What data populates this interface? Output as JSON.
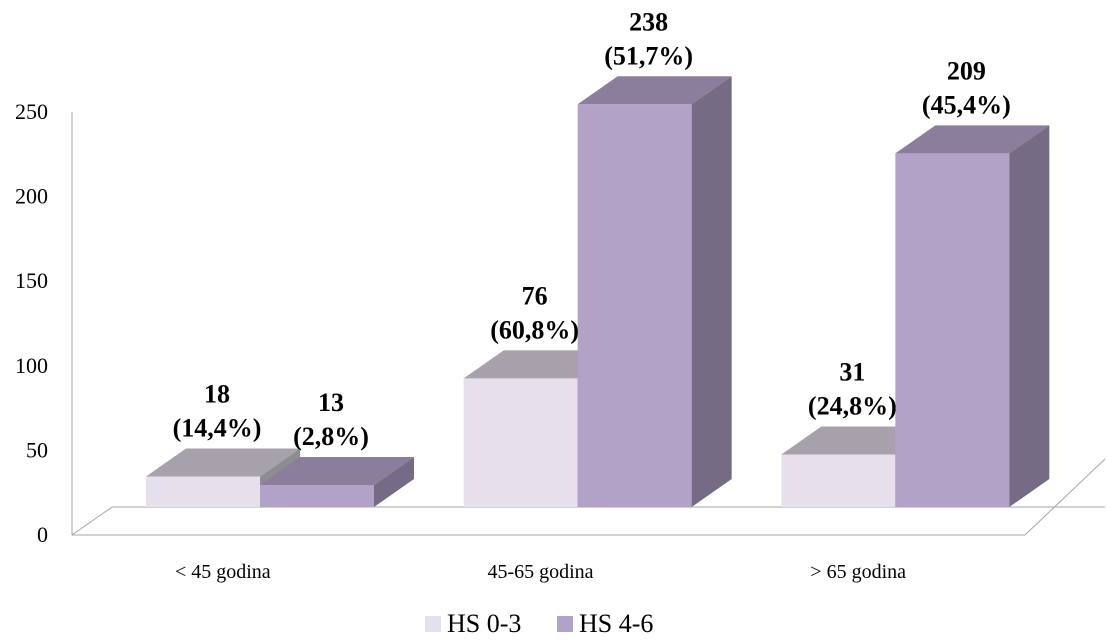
{
  "chart_data": {
    "type": "bar",
    "style": "3d-clustered-column",
    "categories": [
      "< 45 godina",
      "45-65 godina",
      "> 65 godina"
    ],
    "series": [
      {
        "name": "HS 0-3",
        "values": [
          18,
          76,
          31
        ],
        "labels": [
          [
            "18",
            "(14,4%)"
          ],
          [
            "76",
            "(60,8%)"
          ],
          [
            "31",
            "(24,8%)"
          ]
        ],
        "color": "#e6e0ed"
      },
      {
        "name": "HS 4-6",
        "values": [
          13,
          238,
          209
        ],
        "labels": [
          [
            "13",
            "(2,8%)"
          ],
          [
            "238",
            "(51,7%)"
          ],
          [
            "209",
            "(45,4%)"
          ]
        ],
        "color": "#b2a2c8"
      }
    ],
    "ylim": [
      0,
      250
    ],
    "yticks": [
      "0",
      "50",
      "100",
      "150",
      "200",
      "250"
    ],
    "grid": false,
    "legend_position": "bottom"
  }
}
